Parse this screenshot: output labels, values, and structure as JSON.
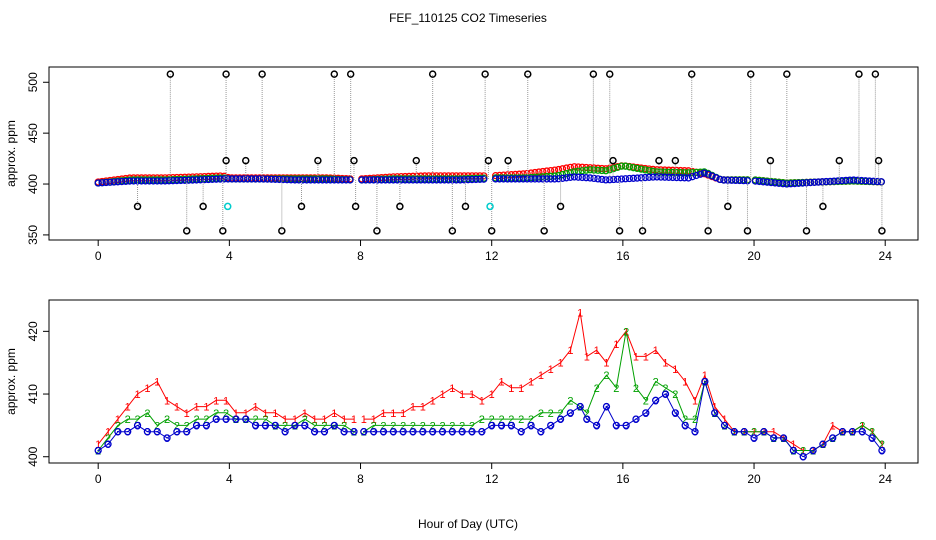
{
  "title": "FEF_110125  CO2 Timeseries",
  "xlabel": "Hour of Day (UTC)",
  "colors": {
    "series1": "#ff0000",
    "series2": "#00a000",
    "series3": "#0000cc",
    "raw": "#000000",
    "cyan": "#00cccc",
    "spikes": "#999999"
  },
  "chart_data": [
    {
      "type": "scatter",
      "name": "top",
      "ylabel": "approx. ppm",
      "xlim": [
        -1.5,
        25
      ],
      "ylim": [
        345,
        515
      ],
      "x_ticks": [
        0,
        4,
        8,
        12,
        16,
        20,
        24
      ],
      "y_ticks": [
        350,
        400,
        450,
        500
      ],
      "baseline": {
        "x": [
          0,
          1,
          2,
          3,
          3.8,
          4,
          5,
          6,
          7,
          7.8,
          8,
          9,
          10,
          11,
          12,
          13,
          14,
          14.5,
          15,
          15.5,
          16,
          17,
          18,
          18.5,
          19,
          20,
          21,
          22,
          23,
          24
        ],
        "y1": [
          402,
          406,
          406,
          407,
          408,
          406,
          406,
          406,
          406,
          405,
          405,
          407,
          408,
          408,
          408,
          410,
          414,
          417,
          416,
          415,
          418,
          414,
          413,
          410,
          404,
          404,
          401,
          402,
          403,
          402
        ],
        "y2": [
          401,
          404,
          404,
          405,
          406,
          405,
          405,
          405,
          405,
          404,
          404,
          405,
          405,
          405,
          406,
          406,
          408,
          412,
          414,
          413,
          418,
          412,
          411,
          412,
          404,
          404,
          401,
          402,
          403,
          402
        ],
        "y3": [
          401,
          403,
          403,
          404,
          405,
          405,
          405,
          404,
          404,
          404,
          404,
          404,
          404,
          404,
          405,
          405,
          405,
          407,
          406,
          404,
          405,
          407,
          406,
          411,
          404,
          403,
          400,
          402,
          404,
          402
        ]
      },
      "raw_points": {
        "x": [
          1.2,
          2.2,
          2.7,
          3.2,
          3.8,
          3.9,
          3.9,
          4.5,
          5.0,
          5.6,
          6.2,
          6.7,
          7.2,
          7.7,
          7.8,
          7.85,
          8.5,
          9.2,
          9.7,
          10.2,
          10.8,
          11.2,
          11.8,
          11.9,
          12.0,
          12.5,
          13.1,
          13.6,
          14.1,
          15.1,
          15.6,
          15.7,
          15.9,
          16.6,
          17.1,
          17.6,
          18.1,
          18.6,
          19.2,
          19.8,
          19.9,
          20.5,
          21.0,
          21.6,
          22.1,
          22.6,
          23.2,
          23.7,
          23.8,
          23.9
        ],
        "y": [
          378,
          508,
          354,
          378,
          354,
          508,
          423,
          423,
          508,
          354,
          378,
          423,
          508,
          508,
          423,
          378,
          354,
          378,
          423,
          508,
          354,
          378,
          508,
          423,
          354,
          423,
          508,
          354,
          378,
          508,
          508,
          423,
          354,
          354,
          423,
          423,
          508,
          354,
          378,
          354,
          508,
          423,
          508,
          354,
          378,
          423,
          508,
          508,
          423,
          354
        ]
      },
      "spikes_from_baseline": true,
      "cyan_points": {
        "x": [
          3.95,
          11.95
        ],
        "y": [
          378,
          378
        ]
      }
    },
    {
      "type": "line",
      "name": "bottom",
      "ylabel": "approx. ppm",
      "xlim": [
        -1.5,
        25
      ],
      "ylim": [
        399,
        425
      ],
      "x_ticks": [
        0,
        4,
        8,
        12,
        16,
        20,
        24
      ],
      "y_ticks": [
        400,
        410,
        420
      ],
      "series": [
        {
          "name": "1",
          "color": "#ff0000",
          "marker": "1",
          "x": [
            0,
            0.3,
            0.6,
            0.9,
            1.2,
            1.5,
            1.8,
            2.1,
            2.4,
            2.7,
            3.0,
            3.3,
            3.6,
            3.9,
            4.2,
            4.5,
            4.8,
            5.1,
            5.4,
            5.7,
            6.0,
            6.3,
            6.6,
            6.9,
            7.2,
            7.5,
            7.8,
            8.1,
            8.4,
            8.7,
            9.0,
            9.3,
            9.6,
            9.9,
            10.2,
            10.5,
            10.8,
            11.1,
            11.4,
            11.7,
            12.0,
            12.3,
            12.6,
            12.9,
            13.2,
            13.5,
            13.8,
            14.1,
            14.4,
            14.7,
            14.9,
            15.2,
            15.5,
            15.8,
            16.1,
            16.4,
            16.7,
            17.0,
            17.3,
            17.6,
            17.9,
            18.2,
            18.5,
            18.8,
            19.1,
            19.4,
            19.7,
            20.0,
            20.3,
            20.6,
            20.9,
            21.2,
            21.5,
            21.8,
            22.1,
            22.4,
            22.7,
            23.0,
            23.3,
            23.6,
            23.9
          ],
          "y": [
            402,
            404,
            406,
            408,
            410,
            411,
            412,
            409,
            408,
            407,
            408,
            408,
            409,
            409,
            407,
            407,
            408,
            407,
            407,
            406,
            406,
            407,
            406,
            406,
            407,
            406,
            406,
            406,
            406,
            407,
            407,
            407,
            408,
            408,
            409,
            410,
            411,
            410,
            410,
            409,
            410,
            412,
            411,
            411,
            412,
            413,
            414,
            415,
            417,
            423,
            416,
            417,
            415,
            418,
            420,
            416,
            416,
            417,
            415,
            414,
            412,
            409,
            413,
            408,
            406,
            404,
            404,
            404,
            404,
            404,
            403,
            402,
            401,
            401,
            402,
            405,
            404,
            404,
            405,
            404,
            402
          ]
        },
        {
          "name": "2",
          "color": "#00a000",
          "marker": "2",
          "x": [
            0,
            0.3,
            0.6,
            0.9,
            1.2,
            1.5,
            1.8,
            2.1,
            2.4,
            2.7,
            3.0,
            3.3,
            3.6,
            3.9,
            4.2,
            4.5,
            4.8,
            5.1,
            5.4,
            5.7,
            6.0,
            6.3,
            6.6,
            6.9,
            7.2,
            7.5,
            7.8,
            8.1,
            8.4,
            8.7,
            9.0,
            9.3,
            9.6,
            9.9,
            10.2,
            10.5,
            10.8,
            11.1,
            11.4,
            11.7,
            12.0,
            12.3,
            12.6,
            12.9,
            13.2,
            13.5,
            13.8,
            14.1,
            14.4,
            14.7,
            14.9,
            15.2,
            15.5,
            15.8,
            16.1,
            16.4,
            16.7,
            17.0,
            17.3,
            17.6,
            17.9,
            18.2,
            18.5,
            18.8,
            19.1,
            19.4,
            19.7,
            20.0,
            20.3,
            20.6,
            20.9,
            21.2,
            21.5,
            21.8,
            22.1,
            22.4,
            22.7,
            23.0,
            23.3,
            23.6,
            23.9
          ],
          "y": [
            401,
            403,
            405,
            406,
            406,
            407,
            405,
            406,
            405,
            405,
            406,
            406,
            407,
            407,
            406,
            406,
            406,
            406,
            405,
            405,
            405,
            406,
            405,
            405,
            405,
            405,
            404,
            404,
            405,
            405,
            405,
            405,
            405,
            405,
            405,
            405,
            405,
            405,
            405,
            406,
            406,
            406,
            406,
            406,
            406,
            407,
            407,
            407,
            409,
            408,
            407,
            411,
            413,
            411,
            420,
            411,
            409,
            412,
            411,
            410,
            406,
            406,
            412,
            407,
            405,
            404,
            404,
            404,
            404,
            403,
            403,
            401,
            401,
            401,
            402,
            403,
            404,
            404,
            405,
            404,
            402
          ]
        },
        {
          "name": "3",
          "color": "#0000cc",
          "marker": "3",
          "x": [
            0,
            0.3,
            0.6,
            0.9,
            1.2,
            1.5,
            1.8,
            2.1,
            2.4,
            2.7,
            3.0,
            3.3,
            3.6,
            3.9,
            4.2,
            4.5,
            4.8,
            5.1,
            5.4,
            5.7,
            6.0,
            6.3,
            6.6,
            6.9,
            7.2,
            7.5,
            7.8,
            8.1,
            8.4,
            8.7,
            9.0,
            9.3,
            9.6,
            9.9,
            10.2,
            10.5,
            10.8,
            11.1,
            11.4,
            11.7,
            12.0,
            12.3,
            12.6,
            12.9,
            13.2,
            13.5,
            13.8,
            14.1,
            14.4,
            14.7,
            14.9,
            15.2,
            15.5,
            15.8,
            16.1,
            16.4,
            16.7,
            17.0,
            17.3,
            17.6,
            17.9,
            18.2,
            18.5,
            18.8,
            19.1,
            19.4,
            19.7,
            20.0,
            20.3,
            20.6,
            20.9,
            21.2,
            21.5,
            21.8,
            22.1,
            22.4,
            22.7,
            23.0,
            23.3,
            23.6,
            23.9
          ],
          "y": [
            401,
            402,
            404,
            404,
            405,
            404,
            404,
            403,
            404,
            404,
            405,
            405,
            406,
            406,
            406,
            406,
            405,
            405,
            405,
            404,
            405,
            405,
            404,
            404,
            405,
            404,
            404,
            404,
            404,
            404,
            404,
            404,
            404,
            404,
            404,
            404,
            404,
            404,
            404,
            404,
            405,
            405,
            405,
            404,
            405,
            404,
            405,
            406,
            407,
            408,
            406,
            405,
            408,
            405,
            405,
            406,
            407,
            409,
            410,
            407,
            405,
            404,
            412,
            407,
            405,
            404,
            404,
            403,
            404,
            403,
            403,
            401,
            400,
            401,
            402,
            403,
            404,
            404,
            404,
            403,
            401
          ]
        }
      ]
    }
  ]
}
